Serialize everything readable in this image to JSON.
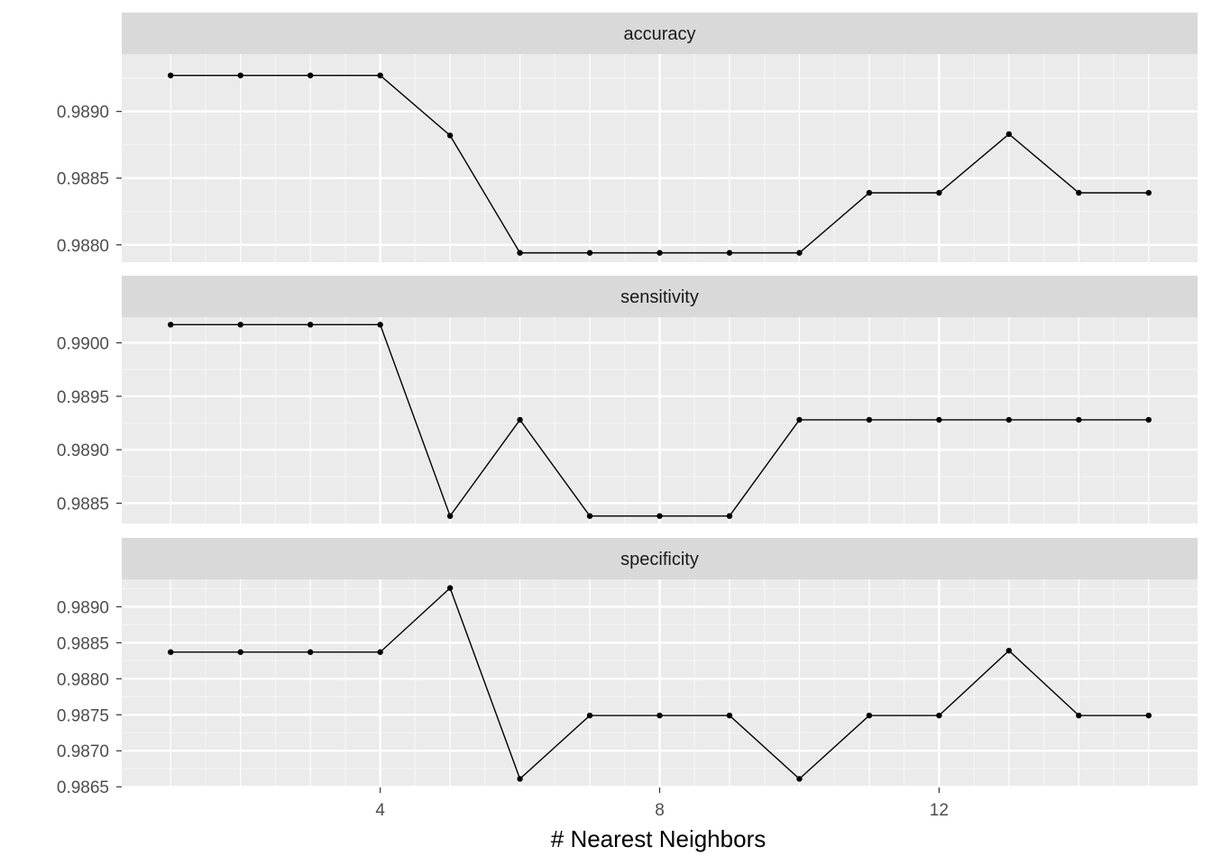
{
  "chart_data": {
    "type": "line",
    "xlabel": "# Nearest Neighbors",
    "x": [
      1,
      2,
      3,
      4,
      5,
      6,
      7,
      8,
      9,
      10,
      11,
      12,
      13,
      14,
      15
    ],
    "x_ticks": [
      4,
      8,
      12
    ],
    "x_tick_labels": [
      "4",
      "8",
      "12"
    ],
    "xlim": [
      0.3,
      15.7
    ],
    "grid": true,
    "facets": [
      {
        "strip": "accuracy",
        "values": [
          0.98927,
          0.98927,
          0.98927,
          0.98927,
          0.98882,
          0.98794,
          0.98794,
          0.98794,
          0.98794,
          0.98794,
          0.98839,
          0.98839,
          0.98883,
          0.98839,
          0.98839
        ],
        "ylim": [
          0.98787,
          0.98943
        ],
        "y_ticks": [
          0.988,
          0.9885,
          0.989
        ],
        "y_tick_labels": [
          "0.9880",
          "0.9885",
          "0.9890"
        ]
      },
      {
        "strip": "sensitivity",
        "values": [
          0.99017,
          0.99017,
          0.99017,
          0.99017,
          0.98838,
          0.98928,
          0.98838,
          0.98838,
          0.98838,
          0.98928,
          0.98928,
          0.98928,
          0.98928,
          0.98928,
          0.98928
        ],
        "ylim": [
          0.98831,
          0.99024
        ],
        "y_ticks": [
          0.9885,
          0.989,
          0.9895,
          0.99
        ],
        "y_tick_labels": [
          "0.9885",
          "0.9890",
          "0.9895",
          "0.9900"
        ]
      },
      {
        "strip": "specificity",
        "values": [
          0.98837,
          0.98837,
          0.98837,
          0.98837,
          0.98926,
          0.98661,
          0.98749,
          0.98749,
          0.98749,
          0.98661,
          0.98749,
          0.98749,
          0.98839,
          0.98749,
          0.98749
        ],
        "ylim": [
          0.98649,
          0.98938
        ],
        "y_ticks": [
          0.9865,
          0.987,
          0.9875,
          0.988,
          0.9885,
          0.989
        ],
        "y_tick_labels": [
          "0.9865",
          "0.9870",
          "0.9875",
          "0.9880",
          "0.9885",
          "0.9890"
        ]
      }
    ],
    "colors": {
      "panel_background": "#ebebeb",
      "strip_background": "#d9d9d9",
      "grid_major": "#ffffff",
      "grid_minor": "#f4f4f4",
      "line": "#000000",
      "point": "#000000"
    }
  }
}
